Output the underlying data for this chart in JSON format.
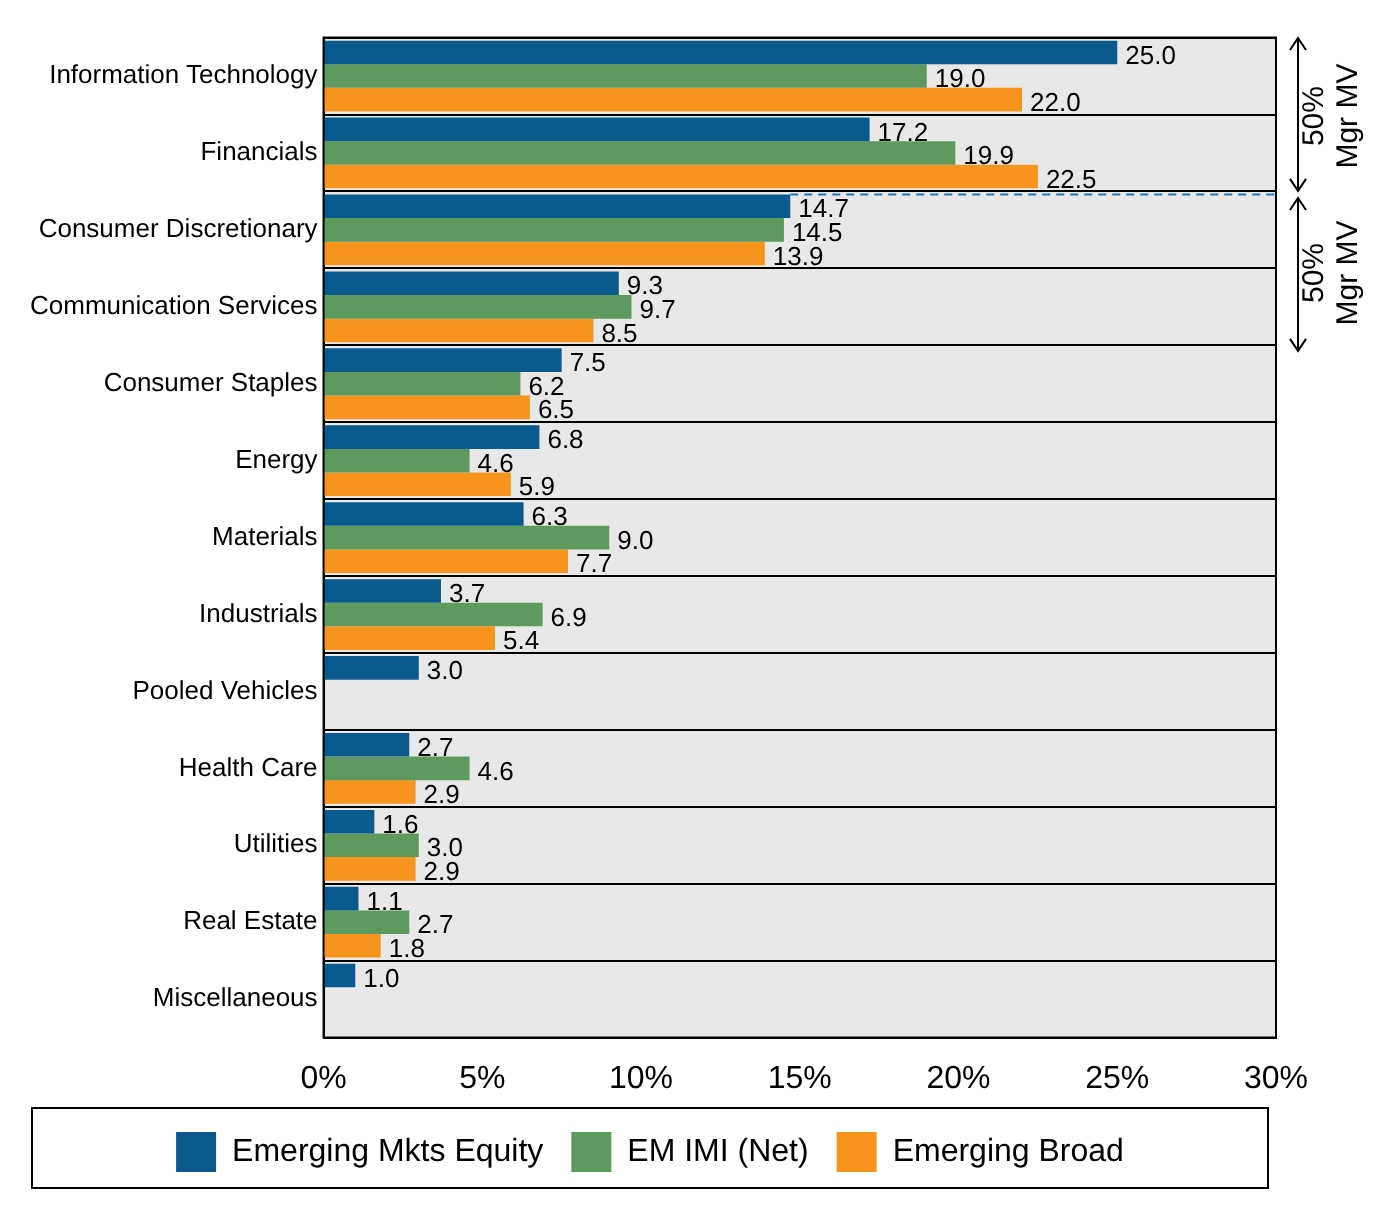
{
  "chart_data": {
    "type": "bar",
    "orientation": "horizontal",
    "categories": [
      "Information Technology",
      "Financials",
      "Consumer Discretionary",
      "Communication Services",
      "Consumer Staples",
      "Energy",
      "Materials",
      "Industrials",
      "Pooled Vehicles",
      "Health Care",
      "Utilities",
      "Real Estate",
      "Miscellaneous"
    ],
    "series": [
      {
        "name": "Emerging Mkts Equity",
        "color": "#0b5a8e",
        "values": [
          25.0,
          17.2,
          14.7,
          9.3,
          7.5,
          6.8,
          6.3,
          3.7,
          3.0,
          2.7,
          1.6,
          1.1,
          1.0
        ],
        "value_labels": [
          "25.0",
          "17.2",
          "14.7",
          "9.3",
          "7.5",
          "6.8",
          "6.3",
          "3.7",
          "3.0",
          "2.7",
          "1.6",
          "1.1",
          "1.0"
        ]
      },
      {
        "name": "EM IMI (Net)",
        "color": "#5e9a5e",
        "values": [
          19.0,
          19.9,
          14.5,
          9.7,
          6.2,
          4.6,
          9.0,
          6.9,
          null,
          4.6,
          3.0,
          2.7,
          null
        ],
        "value_labels": [
          "19.0",
          "19.9",
          "14.5",
          "9.7",
          "6.2",
          "4.6",
          "9.0",
          "6.9",
          null,
          "4.6",
          "3.0",
          "2.7",
          null
        ]
      },
      {
        "name": "Emerging Broad",
        "color": "#f7941d",
        "values": [
          22.0,
          22.5,
          13.9,
          8.5,
          6.5,
          5.9,
          7.7,
          5.4,
          null,
          2.9,
          2.9,
          1.8,
          null
        ],
        "value_labels": [
          "22.0",
          "22.5",
          "13.9",
          "8.5",
          "6.5",
          "5.9",
          "7.7",
          "5.4",
          null,
          "2.9",
          "2.9",
          "1.8",
          null
        ]
      }
    ],
    "xlim": [
      0,
      30
    ],
    "xticks": [
      {
        "value": 0,
        "label": "0%"
      },
      {
        "value": 5,
        "label": "5%"
      },
      {
        "value": 10,
        "label": "10%"
      },
      {
        "value": 15,
        "label": "15%"
      },
      {
        "value": 20,
        "label": "20%"
      },
      {
        "value": 25,
        "label": "25%"
      },
      {
        "value": 30,
        "label": "30%"
      }
    ],
    "ref_lines": [
      {
        "axis": "y",
        "value": "Consumer Discretionary",
        "line_style": "dashed",
        "color": "#1f78b4"
      }
    ],
    "annotations": [
      "50% Mgr MV",
      "50% Mgr MV"
    ],
    "grid": "y",
    "legend": "bottom"
  }
}
